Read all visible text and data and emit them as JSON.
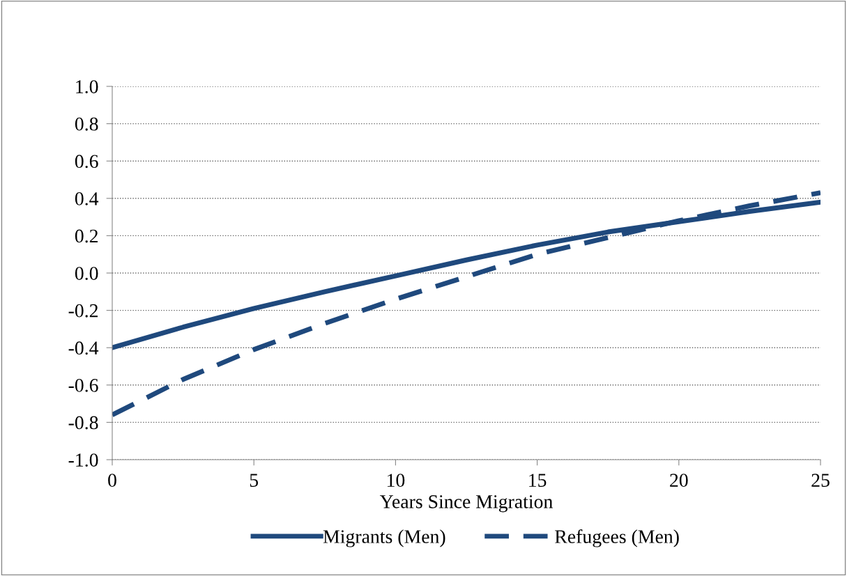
{
  "chart_data": {
    "type": "line",
    "xlabel": "Years Since Migration",
    "x": [
      0,
      2.5,
      5,
      7.5,
      10,
      12.5,
      15,
      17.5,
      20,
      22.5,
      25
    ],
    "series": [
      {
        "name": "Migrants (Men)",
        "color": "#1f497d",
        "line_style": "solid",
        "values": [
          -0.4,
          -0.29,
          -0.19,
          -0.1,
          -0.015,
          0.07,
          0.15,
          0.22,
          0.275,
          0.33,
          0.38
        ]
      },
      {
        "name": "Refugees (Men)",
        "color": "#1f497d",
        "line_style": "dashed",
        "values": [
          -0.76,
          -0.57,
          -0.41,
          -0.27,
          -0.14,
          -0.02,
          0.1,
          0.19,
          0.28,
          0.36,
          0.43
        ]
      }
    ],
    "xlim": [
      0,
      25
    ],
    "xticks": [
      0,
      5,
      10,
      15,
      20,
      25
    ],
    "ylim": [
      -1.0,
      1.0
    ],
    "yticks": [
      {
        "value": -1.0,
        "label": "-1.0"
      },
      {
        "value": -0.8,
        "label": "-0.8"
      },
      {
        "value": -0.6,
        "label": "-0.6"
      },
      {
        "value": -0.4,
        "label": "-0.4"
      },
      {
        "value": -0.2,
        "label": "-0.2"
      },
      {
        "value": 0.0,
        "label": "0.0"
      },
      {
        "value": 0.2,
        "label": "0.2"
      },
      {
        "value": 0.4,
        "label": "0.4"
      },
      {
        "value": 0.6,
        "label": "0.6"
      },
      {
        "value": 0.8,
        "label": "0.8"
      },
      {
        "value": 1.0,
        "label": "1.0"
      }
    ],
    "grid": "y",
    "legend": "bottom",
    "marker": "none"
  }
}
